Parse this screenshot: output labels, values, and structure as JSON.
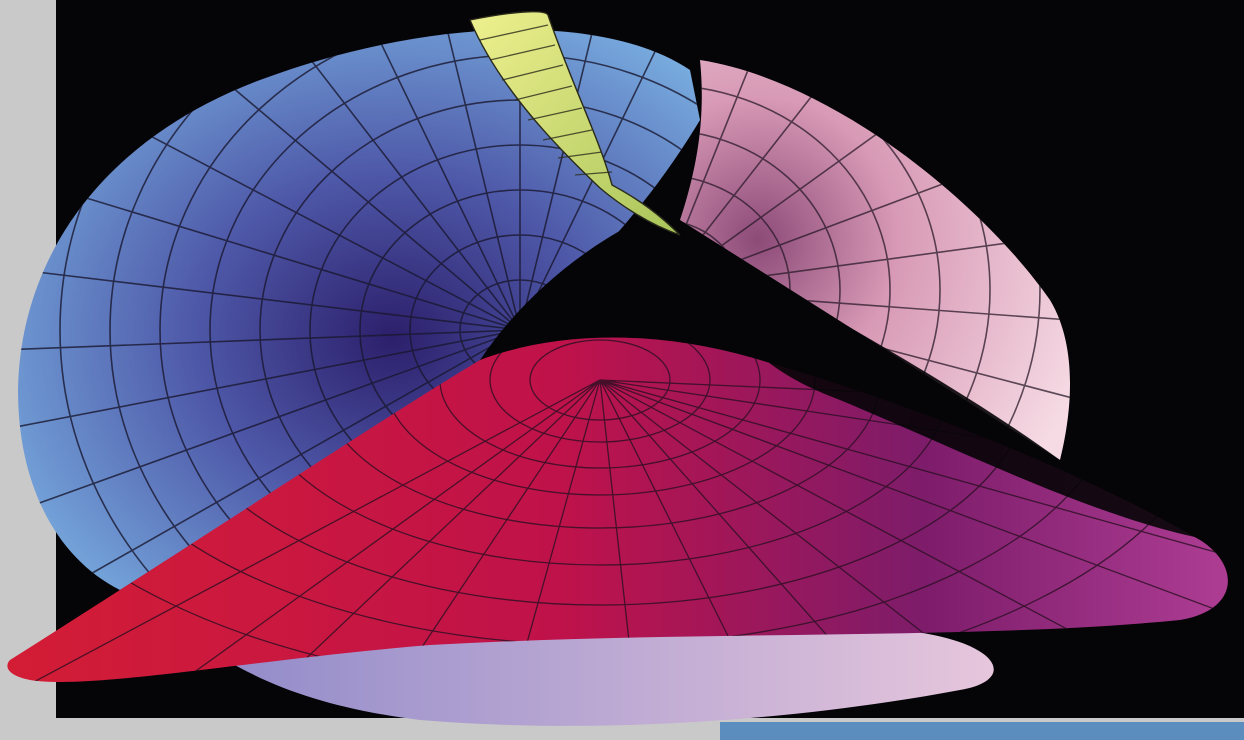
{
  "scene": {
    "description_tag": "parametric-surface-render",
    "colors": {
      "paper": "#c9c9c9",
      "background": "#050407",
      "accent_strip": "#5b8dbf",
      "blue_sheet": [
        "#6fa2d8",
        "#5a6fb6",
        "#3b2d7e"
      ],
      "pink_sheet": [
        "#f3d6df",
        "#e7aac0",
        "#c47d9c"
      ],
      "red_sheet": [
        "#d6203e",
        "#b9124c",
        "#5b1b6e"
      ],
      "yellow_band": [
        "#e6e88c",
        "#b9d060"
      ],
      "mesh_line": "#1c1a2a"
    }
  }
}
